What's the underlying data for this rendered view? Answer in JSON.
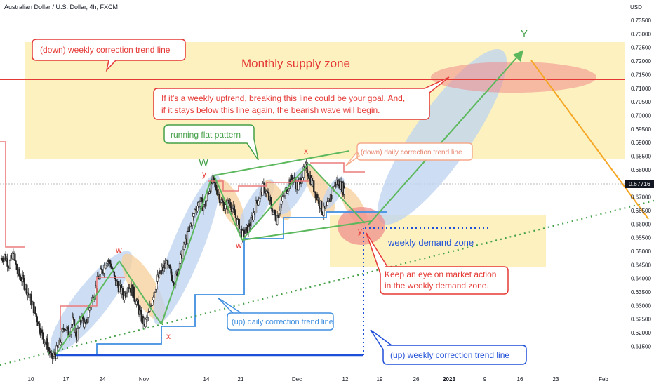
{
  "header": {
    "symbol_title": "Australian Dollar / U.S. Dollar, 4h, FXCM",
    "currency": "USD"
  },
  "chart_data": {
    "type": "candlestick",
    "title": "Australian Dollar / U.S. Dollar, 4h, FXCM",
    "ylabel": "USD",
    "ylim": [
      0.6125,
      0.7375
    ],
    "y_ticks": [
      "0.73500",
      "0.73000",
      "0.72500",
      "0.72000",
      "0.71500",
      "0.71000",
      "0.70500",
      "0.70000",
      "0.69500",
      "0.69000",
      "0.68500",
      "0.68000",
      "0.67500",
      "0.67000",
      "0.66500",
      "0.66000",
      "0.65500",
      "0.65000",
      "0.64500",
      "0.64000",
      "0.63500",
      "0.63000",
      "0.62500",
      "0.62000",
      "0.61500"
    ],
    "x_ticks": [
      "10",
      "17",
      "24",
      "Nov",
      "14",
      "21",
      "Dec",
      "12",
      "19",
      "26",
      "2023",
      "9",
      "16",
      "23",
      "Feb"
    ],
    "last_price": "0.67716",
    "grid": false,
    "zones": [
      {
        "label": "Monthly supply zone",
        "from": 0.686,
        "to": 0.726,
        "color": "#fbeeb4"
      },
      {
        "label": "weekly demand zone",
        "from": 0.6485,
        "to": 0.6665,
        "color": "#fbeeb4"
      }
    ],
    "levels": [
      {
        "name": "monthly-supply-line",
        "value": 0.7135,
        "color": "#e53935"
      },
      {
        "name": "weekly-demand-line",
        "value": 0.6614,
        "color": "#1e4fd8"
      }
    ],
    "price_path": [
      0.652,
      0.653,
      0.65,
      0.6535,
      0.647,
      0.645,
      0.642,
      0.638,
      0.634,
      0.629,
      0.6245,
      0.622,
      0.617,
      0.619,
      0.6225,
      0.629,
      0.626,
      0.63,
      0.625,
      0.632,
      0.628,
      0.635,
      0.64,
      0.645,
      0.648,
      0.652,
      0.65,
      0.644,
      0.642,
      0.639,
      0.643,
      0.641,
      0.637,
      0.632,
      0.629,
      0.633,
      0.64,
      0.645,
      0.648,
      0.65,
      0.647,
      0.644,
      0.65,
      0.655,
      0.66,
      0.665,
      0.67,
      0.672,
      0.67,
      0.676,
      0.679,
      0.676,
      0.672,
      0.67,
      0.672,
      0.668,
      0.664,
      0.66,
      0.662,
      0.665,
      0.67,
      0.674,
      0.677,
      0.674,
      0.669,
      0.666,
      0.671,
      0.675,
      0.679,
      0.68,
      0.677,
      0.681,
      0.684,
      0.68,
      0.676,
      0.672,
      0.668,
      0.67,
      0.675,
      0.679,
      0.678,
      0.676
    ],
    "waves": [
      {
        "name": "green-wave",
        "points": [
          [
            0.619
          ],
          [
            0.653
          ],
          [
            0.629
          ],
          [
            0.679
          ],
          [
            0.66
          ],
          [
            0.684
          ],
          [
            0.666
          ],
          [
            0.7245
          ]
        ]
      }
    ],
    "labels": {
      "W": "W",
      "X_top": "x",
      "Y_top": "Y",
      "y1": "y",
      "w1": "w",
      "x1": "x",
      "w2": "w",
      "y2": "y"
    }
  },
  "callouts": {
    "down_weekly": "(down) weekly correction trend line",
    "monthly_supply": "Monthly supply zone",
    "weekly_goal": "If it's a weekly uptrend, breaking this line could be your goal. And,\nif it stays below this line again, the bearish wave will begin.",
    "running_flat": "running flat pattern",
    "down_daily": "(down) daily correction trend line",
    "weekly_demand": "weekly demand zone",
    "keep_eye": "Keep an eye on market action\nin the weekly demand zone.",
    "up_daily": "(up) daily correction trend line",
    "up_weekly": "(up) weekly correction trend line"
  },
  "colors": {
    "red": "#e53935",
    "green": "#43a047",
    "blue": "#1e4fd8",
    "orange": "#f5a623",
    "supply_zone": "#fbeeb4",
    "blue_ellipse": "#bcd3f0",
    "orange_ellipse": "#f7cf9a",
    "red_ellipse": "#f08a8a"
  }
}
